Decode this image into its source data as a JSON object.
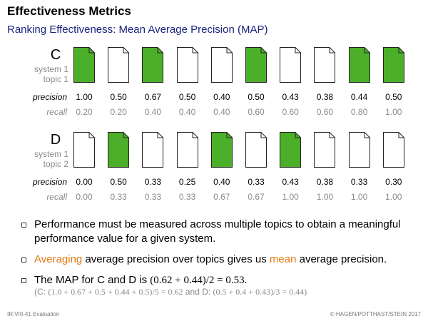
{
  "slide": {
    "title": "Effectiveness Metrics",
    "subtitle": "Ranking Effectiveness: Mean Average Precision (MAP)"
  },
  "rankings": [
    {
      "letter": "C",
      "system": "system 1",
      "topic": "topic 1",
      "relevant": [
        true,
        false,
        true,
        false,
        false,
        true,
        false,
        false,
        true,
        true
      ],
      "precision_label": "precision",
      "recall_label": "recall",
      "precision": [
        "1.00",
        "0.50",
        "0.67",
        "0.50",
        "0.40",
        "0.50",
        "0.43",
        "0.38",
        "0.44",
        "0.50"
      ],
      "recall": [
        "0.20",
        "0.20",
        "0.40",
        "0.40",
        "0.40",
        "0.60",
        "0.60",
        "0.60",
        "0.80",
        "1.00"
      ]
    },
    {
      "letter": "D",
      "system": "system 1",
      "topic": "topic 2",
      "relevant": [
        false,
        true,
        false,
        false,
        true,
        false,
        true,
        false,
        false,
        false
      ],
      "precision_label": "precision",
      "recall_label": "recall",
      "precision": [
        "0.00",
        "0.50",
        "0.33",
        "0.25",
        "0.40",
        "0.33",
        "0.43",
        "0.38",
        "0.33",
        "0.30"
      ],
      "recall": [
        "0.00",
        "0.33",
        "0.33",
        "0.33",
        "0.67",
        "0.67",
        "1.00",
        "1.00",
        "1.00",
        "1.00"
      ]
    }
  ],
  "colors": {
    "relevant_fill": "#4caf2a",
    "nonrelevant_fill": "#ffffff",
    "accent": "#e07a10",
    "subtitle": "#1a237e"
  },
  "bullets": {
    "b1": "Performance must be measured across multiple topics to obtain a meaningful performance value for a given system.",
    "b2_hl1": "Averaging",
    "b2_mid": " average precision over topics gives us ",
    "b2_hl2": "mean",
    "b2_end": " average precision.",
    "b3_text": "The MAP for C and D is ",
    "b3_math": "(0.62 + 0.44)/2 = 0.53.",
    "note_c_label": "(C: ",
    "note_c_math": "(1.0 + 0.67 + 0.5 + 0.44 + 0.5)/5 = 0.62",
    "note_and": " and D: ",
    "note_d_math": "(0.5 + 0.4 + 0.43)/3 = 0.44)"
  },
  "footer": {
    "left": "IR:VIII-41   Evaluation",
    "right": "© HAGEN/POTTHAST/STEIN 2017"
  }
}
